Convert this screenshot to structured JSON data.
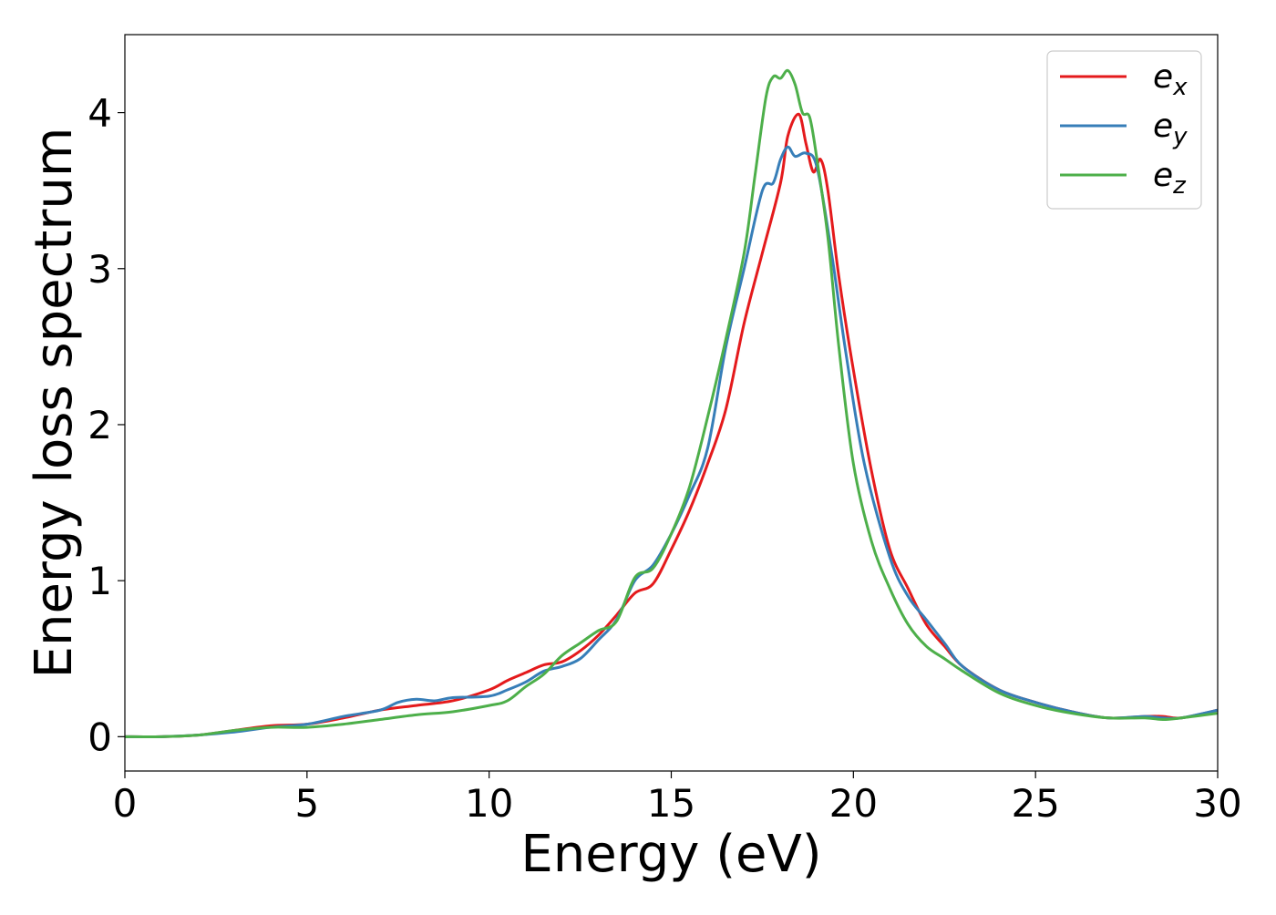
{
  "chart_data": {
    "type": "line",
    "title": "",
    "xlabel": "Energy (eV)",
    "ylabel": "Energy loss spectrum",
    "xlim": [
      0,
      30
    ],
    "ylim": [
      -0.22,
      4.5
    ],
    "x_ticks": [
      0,
      5,
      10,
      15,
      20,
      25,
      30
    ],
    "y_ticks": [
      0,
      1,
      2,
      3,
      4
    ],
    "grid": false,
    "legend_position": "top-right",
    "series": [
      {
        "name": "e_x",
        "legend_base": "e",
        "legend_sub": "x",
        "color": "#e41a1c",
        "x": [
          0,
          1,
          2,
          3,
          4,
          5,
          6,
          7,
          8,
          9,
          10,
          10.5,
          11,
          11.5,
          12,
          12.5,
          13,
          13.5,
          14,
          14.5,
          15,
          15.5,
          16,
          16.5,
          17,
          17.5,
          18,
          18.2,
          18.5,
          18.7,
          18.9,
          19.1,
          19.3,
          19.6,
          20,
          20.5,
          21,
          21.5,
          22,
          22.5,
          23,
          24,
          25,
          26,
          27,
          28,
          28.5,
          29,
          30
        ],
        "y": [
          0,
          0,
          0.01,
          0.04,
          0.07,
          0.08,
          0.12,
          0.17,
          0.2,
          0.23,
          0.3,
          0.36,
          0.41,
          0.46,
          0.48,
          0.55,
          0.65,
          0.78,
          0.92,
          0.98,
          1.2,
          1.45,
          1.75,
          2.1,
          2.65,
          3.1,
          3.55,
          3.85,
          3.99,
          3.8,
          3.62,
          3.7,
          3.5,
          2.95,
          2.35,
          1.7,
          1.2,
          0.95,
          0.72,
          0.58,
          0.45,
          0.3,
          0.22,
          0.16,
          0.12,
          0.13,
          0.13,
          0.12,
          0.17
        ]
      },
      {
        "name": "e_y",
        "legend_base": "e",
        "legend_sub": "y",
        "color": "#377eb8",
        "x": [
          0,
          1,
          2,
          3,
          4,
          5,
          6,
          7,
          7.5,
          8,
          8.5,
          9,
          10,
          10.5,
          11,
          11.5,
          12,
          12.5,
          13,
          13.5,
          14,
          14.5,
          15,
          15.5,
          16,
          16.5,
          17,
          17.5,
          17.8,
          18,
          18.2,
          18.4,
          18.7,
          19,
          19.4,
          19.8,
          20.3,
          21,
          21.5,
          22,
          22.5,
          23,
          24,
          25,
          26,
          27,
          28,
          28.5,
          29,
          30
        ],
        "y": [
          0,
          0,
          0.01,
          0.03,
          0.06,
          0.08,
          0.13,
          0.17,
          0.22,
          0.24,
          0.23,
          0.25,
          0.26,
          0.3,
          0.35,
          0.42,
          0.45,
          0.5,
          0.62,
          0.75,
          1.0,
          1.1,
          1.3,
          1.55,
          1.85,
          2.5,
          3.0,
          3.5,
          3.55,
          3.7,
          3.78,
          3.72,
          3.74,
          3.65,
          3.1,
          2.45,
          1.75,
          1.15,
          0.9,
          0.75,
          0.6,
          0.45,
          0.3,
          0.22,
          0.16,
          0.12,
          0.13,
          0.12,
          0.12,
          0.17
        ]
      },
      {
        "name": "e_z",
        "legend_base": "e",
        "legend_sub": "z",
        "color": "#4daf4a",
        "x": [
          0,
          1,
          2,
          3,
          4,
          5,
          6,
          7,
          8,
          9,
          10,
          10.5,
          11,
          11.5,
          12,
          12.5,
          13,
          13.5,
          14,
          14.5,
          15,
          15.5,
          16,
          16.5,
          17,
          17.3,
          17.6,
          17.8,
          18,
          18.2,
          18.4,
          18.6,
          18.8,
          19,
          19.3,
          19.6,
          20,
          20.5,
          21,
          21.5,
          22,
          22.5,
          23,
          24,
          25,
          26,
          27,
          28,
          28.5,
          29,
          30
        ],
        "y": [
          0,
          0,
          0.01,
          0.04,
          0.06,
          0.06,
          0.08,
          0.11,
          0.14,
          0.16,
          0.2,
          0.23,
          0.32,
          0.4,
          0.52,
          0.6,
          0.68,
          0.74,
          1.02,
          1.08,
          1.3,
          1.6,
          2.05,
          2.55,
          3.1,
          3.6,
          4.1,
          4.23,
          4.22,
          4.27,
          4.18,
          4.0,
          3.97,
          3.7,
          3.2,
          2.5,
          1.75,
          1.25,
          0.95,
          0.72,
          0.58,
          0.5,
          0.42,
          0.28,
          0.2,
          0.15,
          0.12,
          0.12,
          0.11,
          0.12,
          0.15
        ]
      }
    ]
  }
}
